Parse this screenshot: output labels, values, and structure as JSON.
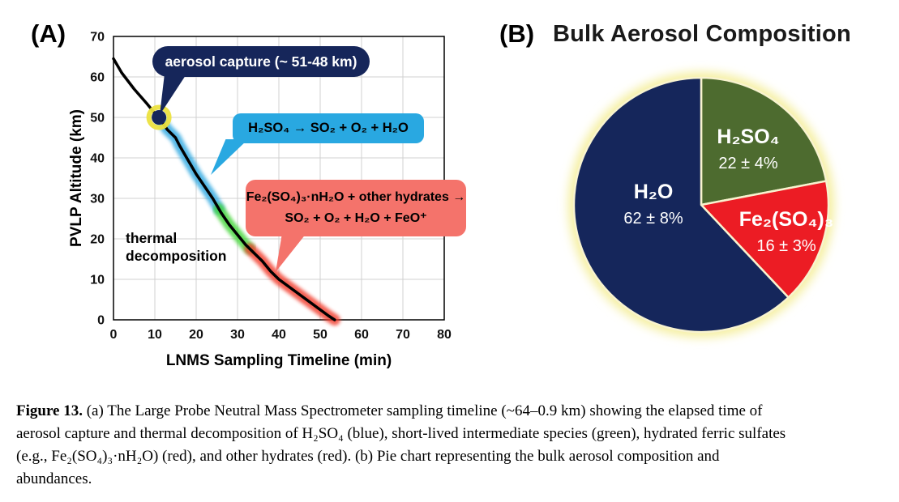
{
  "panelA": {
    "label": "(A)",
    "annotations": {
      "aerosol": "aerosol capture (~ 51-48 km)",
      "h2so4": "H₂SO₄ → SO₂ + O₂ + H₂O",
      "hydrates_line1": "Fe₂(SO₄)₃·nH₂O + other hydrates →",
      "hydrates_line2": "SO₂ + O₂ + H₂O + FeO⁺",
      "thermal_line1": "thermal",
      "thermal_line2": "decomposition"
    }
  },
  "panelB": {
    "label": "(B)"
  },
  "chart_data": [
    {
      "type": "line",
      "title": "",
      "xlabel": "LNMS Sampling Timeline (min)",
      "ylabel": "PVLP Altitude (km)",
      "xlim": [
        0,
        80
      ],
      "ylim": [
        0,
        70
      ],
      "xticks": [
        0,
        10,
        20,
        30,
        40,
        50,
        60,
        70,
        80
      ],
      "yticks": [
        0,
        10,
        20,
        30,
        40,
        50,
        60,
        70
      ],
      "grid": true,
      "line_color": "#000000",
      "points": [
        [
          0,
          64.5
        ],
        [
          2,
          61
        ],
        [
          5,
          57
        ],
        [
          8,
          53.5
        ],
        [
          10,
          51
        ],
        [
          11,
          50
        ],
        [
          12,
          48.5
        ],
        [
          13,
          47
        ],
        [
          15,
          45
        ],
        [
          16,
          43
        ],
        [
          18,
          39.5
        ],
        [
          20,
          36
        ],
        [
          22,
          33
        ],
        [
          24,
          30
        ],
        [
          26,
          26.5
        ],
        [
          28,
          23.5
        ],
        [
          30,
          21
        ],
        [
          32,
          18.5
        ],
        [
          34,
          16.5
        ],
        [
          36,
          14.5
        ],
        [
          38,
          12
        ],
        [
          40,
          10
        ],
        [
          42,
          8.5
        ],
        [
          44,
          7
        ],
        [
          46,
          5.5
        ],
        [
          48,
          4
        ],
        [
          50,
          2.5
        ],
        [
          52,
          1
        ],
        [
          53.5,
          0
        ]
      ],
      "marker": {
        "x": 11,
        "y": 50,
        "fill": "#16265a",
        "glow": "#ece23f"
      },
      "highlights": [
        {
          "name": "H2SO4 thermal decomposition",
          "color": "#2fa8e1",
          "x_from": 11.5,
          "x_to": 25.5
        },
        {
          "name": "short-lived intermediate species",
          "color": "#3fd435",
          "x_from": 25.5,
          "x_to": 33
        },
        {
          "name": "hydrated ferric sulfates and other hydrates",
          "color": "#f23a2c",
          "x_from": 33,
          "x_to": 53.5
        }
      ]
    },
    {
      "type": "pie",
      "title": "Bulk Aerosol Composition",
      "slices": [
        {
          "label": "H₂SO₄",
          "value": 22,
          "value_text": "22 ± 4%",
          "color": "#4d6b2f"
        },
        {
          "label": "Fe₂(SO₄)₃",
          "value": 16,
          "value_text": "16 ± 3%",
          "color": "#ec1c24"
        },
        {
          "label": "H₂O",
          "value": 62,
          "value_text": "62 ± 8%",
          "color": "#15265b"
        }
      ],
      "start_angle_deg": 0,
      "direction": "clockwise",
      "glow_color": "#f5efa0"
    }
  ],
  "caption": {
    "figure_label": "Figure 13.",
    "line1_rest": " (a) The Large Probe Neutral Mass Spectrometer sampling timeline (~64–0.9 km) showing the elapsed time of",
    "line2": "aerosol capture and thermal decomposition of H₂SO₄ (blue), short-lived intermediate species (green), hydrated ferric sulfates",
    "line3": "(e.g., Fe₂(SO₄)₃·nH₂O) (red), and other hydrates (red). (b) Pie chart representing the bulk aerosol composition and",
    "line4": "abundances."
  }
}
